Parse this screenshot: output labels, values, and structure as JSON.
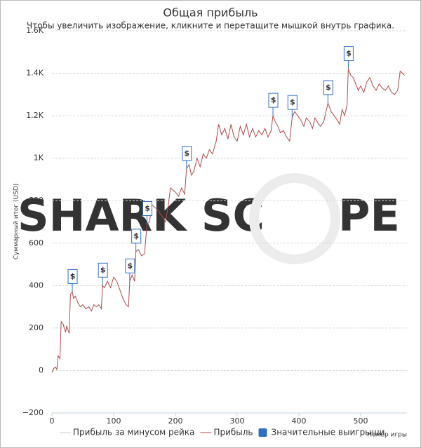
{
  "chart_data": {
    "type": "line",
    "title": "Общая прибыль",
    "subtitle": "Чтобы увеличить изображение, кликните и перетащите мышкой внутрь графика.",
    "y_label": "Суммарный итог (USD)",
    "x_label": "Номер игры",
    "watermark": [
      "SHARK SC",
      "PE"
    ],
    "xlim": [
      0,
      575
    ],
    "xticks": [
      0,
      100,
      200,
      300,
      400,
      500
    ],
    "ylim": [
      -200,
      1600
    ],
    "yticks": [
      {
        "value": -200,
        "label": "−200"
      },
      0,
      200,
      400,
      600,
      800,
      {
        "value": 1000,
        "label": "1K"
      },
      {
        "value": 1200,
        "label": "1.2K"
      },
      {
        "value": 1400,
        "label": "1.4K"
      },
      {
        "value": 1600,
        "label": "1.6K"
      }
    ],
    "grid": true,
    "x": [
      0,
      3,
      6,
      8,
      10,
      13,
      15,
      18,
      22,
      24,
      26,
      28,
      30,
      33,
      35,
      38,
      42,
      46,
      50,
      55,
      60,
      64,
      68,
      72,
      76,
      80,
      82,
      85,
      90,
      95,
      100,
      105,
      110,
      115,
      120,
      124,
      126,
      130,
      134,
      136,
      140,
      145,
      150,
      154,
      158,
      162,
      166,
      170,
      175,
      180,
      184,
      188,
      192,
      196,
      200,
      205,
      210,
      215,
      218,
      222,
      226,
      230,
      235,
      240,
      245,
      250,
      255,
      260,
      266,
      270,
      275,
      280,
      285,
      290,
      295,
      300,
      305,
      310,
      315,
      320,
      325,
      330,
      335,
      340,
      345,
      350,
      355,
      358,
      362,
      366,
      370,
      375,
      380,
      385,
      389,
      393,
      398,
      403,
      408,
      412,
      418,
      422,
      426,
      430,
      435,
      440,
      447,
      452,
      457,
      462,
      466,
      470,
      474,
      478,
      480,
      484,
      488,
      492,
      496,
      500,
      505,
      510,
      515,
      520,
      525,
      530,
      535,
      540,
      545,
      550,
      555,
      560,
      564,
      568,
      571
    ],
    "series": [
      {
        "name": "Прибыль за минусом рейка",
        "color": "#cccccc",
        "visible": false
      },
      {
        "name": "Прибыль",
        "color": "#b04a4a",
        "visible": true,
        "values": [
          -10,
          10,
          15,
          5,
          70,
          55,
          230,
          220,
          180,
          210,
          190,
          175,
          360,
          370,
          340,
          350,
          320,
          300,
          310,
          290,
          300,
          280,
          310,
          300,
          310,
          290,
          400,
          390,
          420,
          390,
          440,
          420,
          380,
          340,
          310,
          300,
          420,
          450,
          420,
          560,
          570,
          540,
          550,
          690,
          700,
          780,
          770,
          760,
          740,
          720,
          700,
          770,
          860,
          850,
          840,
          820,
          860,
          830,
          950,
          970,
          920,
          940,
          1000,
          960,
          1020,
          1000,
          1040,
          1020,
          1080,
          1160,
          1110,
          1140,
          1090,
          1160,
          1100,
          1080,
          1150,
          1110,
          1160,
          1100,
          1140,
          1100,
          1130,
          1110,
          1140,
          1100,
          1130,
          1200,
          1170,
          1150,
          1120,
          1130,
          1100,
          1080,
          1190,
          1220,
          1200,
          1180,
          1150,
          1190,
          1170,
          1140,
          1190,
          1170,
          1150,
          1170,
          1260,
          1220,
          1200,
          1180,
          1160,
          1230,
          1200,
          1250,
          1420,
          1390,
          1380,
          1350,
          1320,
          1340,
          1310,
          1360,
          1380,
          1340,
          1320,
          1350,
          1330,
          1320,
          1340,
          1310,
          1300,
          1320,
          1410,
          1400,
          1390
        ]
      }
    ],
    "flags_name": "Значительные выигрыши",
    "flags_color": "#2f6fbf",
    "flags": [
      {
        "x": 33,
        "title": "$"
      },
      {
        "x": 82,
        "title": "$"
      },
      {
        "x": 126,
        "title": "$"
      },
      {
        "x": 136,
        "title": "$"
      },
      {
        "x": 154,
        "title": "$"
      },
      {
        "x": 218,
        "title": "$"
      },
      {
        "x": 358,
        "title": "$"
      },
      {
        "x": 389,
        "title": "$"
      },
      {
        "x": 447,
        "title": "$"
      },
      {
        "x": 480,
        "title": "$"
      }
    ]
  }
}
